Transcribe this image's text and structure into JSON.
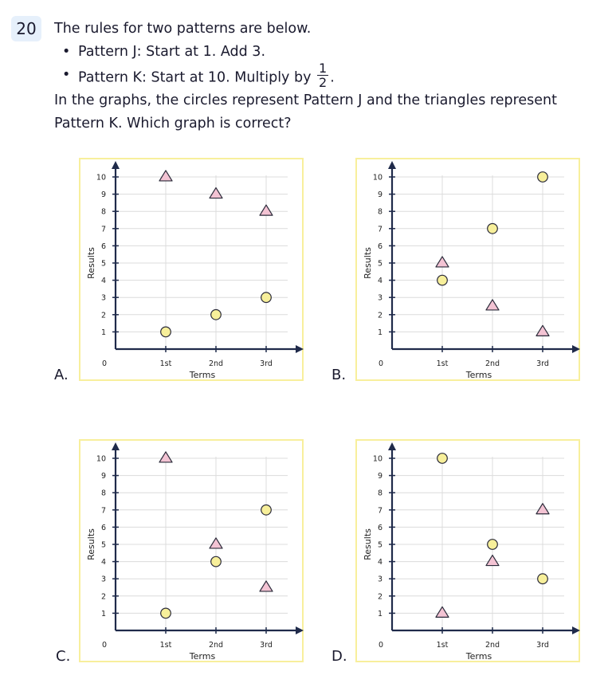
{
  "question": {
    "number": "20",
    "intro": "The rules for two patterns are below.",
    "rule_j": "Pattern J: Start at 1. Add 3.",
    "rule_k_prefix": "Pattern K: Start at 10. Multiply by",
    "rule_k_frac_num": "1",
    "rule_k_frac_den": "2",
    "rule_k_suffix": ".",
    "prompt_line1": "In the graphs, the circles represent Pattern J and the triangles represent",
    "prompt_line2": "Pattern K. Which graph is correct?"
  },
  "colors": {
    "circle_fill": "#f7ef9a",
    "triangle_fill": "#f3c3d3",
    "marker_stroke": "#2b2b3a",
    "axis": "#1f2a4a",
    "grid": "#dcdcdc",
    "box_border": "#f8ef9c"
  },
  "chart_data": [
    {
      "option": "A.",
      "type": "scatter",
      "xlabel": "Terms",
      "ylabel": "Results",
      "origin_label": "0",
      "categories": [
        "1st",
        "2nd",
        "3rd"
      ],
      "yticks": [
        1,
        2,
        3,
        4,
        5,
        6,
        7,
        8,
        9,
        10
      ],
      "ylim": [
        0,
        10
      ],
      "grid": true,
      "series": [
        {
          "marker": "circle",
          "values": [
            1,
            2,
            3
          ]
        },
        {
          "marker": "triangle",
          "values": [
            10,
            9,
            8
          ]
        }
      ]
    },
    {
      "option": "B.",
      "type": "scatter",
      "xlabel": "Terms",
      "ylabel": "Results",
      "origin_label": "0",
      "categories": [
        "1st",
        "2nd",
        "3rd"
      ],
      "yticks": [
        1,
        2,
        3,
        4,
        5,
        6,
        7,
        8,
        9,
        10
      ],
      "ylim": [
        0,
        10
      ],
      "grid": true,
      "series": [
        {
          "marker": "circle",
          "values": [
            4,
            7,
            10
          ]
        },
        {
          "marker": "triangle",
          "values": [
            5,
            2.5,
            1
          ]
        }
      ]
    },
    {
      "option": "C.",
      "type": "scatter",
      "xlabel": "Terms",
      "ylabel": "Results",
      "origin_label": "0",
      "categories": [
        "1st",
        "2nd",
        "3rd"
      ],
      "yticks": [
        1,
        2,
        3,
        4,
        5,
        6,
        7,
        8,
        9,
        10
      ],
      "ylim": [
        0,
        10
      ],
      "grid": true,
      "series": [
        {
          "marker": "circle",
          "values": [
            1,
            4,
            7
          ]
        },
        {
          "marker": "triangle",
          "values": [
            10,
            5,
            2.5
          ]
        }
      ]
    },
    {
      "option": "D.",
      "type": "scatter",
      "xlabel": "Terms",
      "ylabel": "Results",
      "origin_label": "0",
      "categories": [
        "1st",
        "2nd",
        "3rd"
      ],
      "yticks": [
        1,
        2,
        3,
        4,
        5,
        6,
        7,
        8,
        9,
        10
      ],
      "ylim": [
        0,
        10
      ],
      "grid": true,
      "series": [
        {
          "marker": "circle",
          "values": [
            10,
            5,
            3
          ]
        },
        {
          "marker": "triangle",
          "values": [
            1,
            4,
            7
          ]
        }
      ]
    }
  ]
}
